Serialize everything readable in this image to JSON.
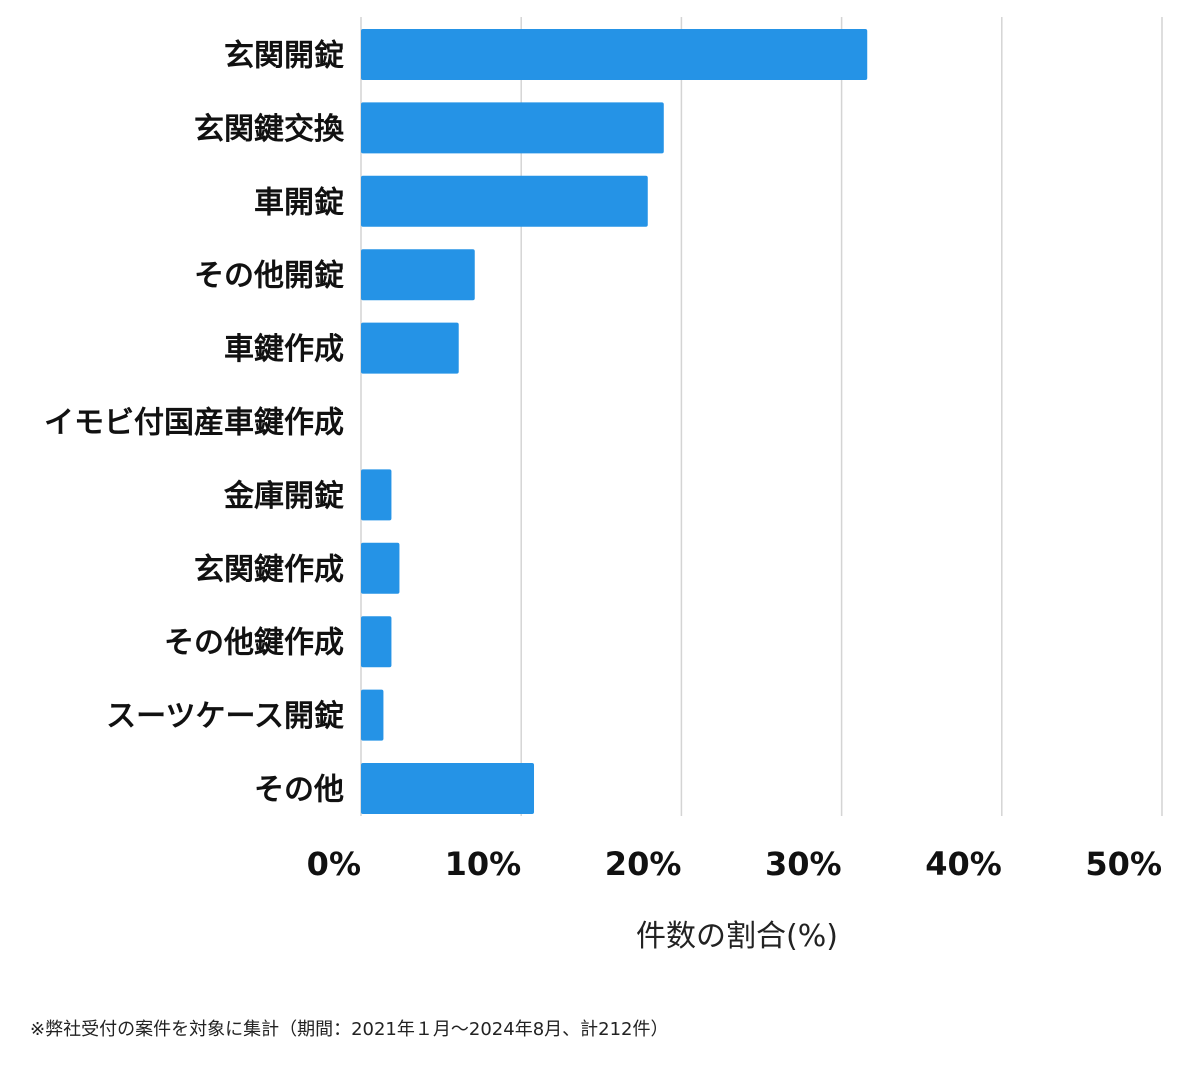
{
  "chart_data": {
    "type": "bar",
    "orientation": "horizontal",
    "categories": [
      "玄関開錠",
      "玄関鍵交換",
      "車開錠",
      "その他開錠",
      "車鍵作成",
      "イモビ付国産車鍵作成",
      "金庫開錠",
      "玄関鍵作成",
      "その他鍵作成",
      "スーツケース開錠",
      "その他"
    ],
    "values": [
      31.6,
      18.9,
      17.9,
      7.1,
      6.1,
      0,
      1.9,
      2.4,
      1.9,
      1.4,
      10.8
    ],
    "unit": "%",
    "xlabel": "件数の割合(%)",
    "ylabel": "",
    "title": "",
    "xlim": [
      0,
      50
    ],
    "xticks": [
      0,
      10,
      20,
      30,
      40,
      50
    ],
    "xtick_labels": [
      "0%",
      "10%",
      "20%",
      "30%",
      "40%",
      "50%"
    ],
    "grid": "vertical",
    "legend": "none",
    "bar_color": "#2593e6"
  },
  "footnote": "※弊社受付の案件を対象に集計（期間：2021年１月～2024年8月、計212件）"
}
